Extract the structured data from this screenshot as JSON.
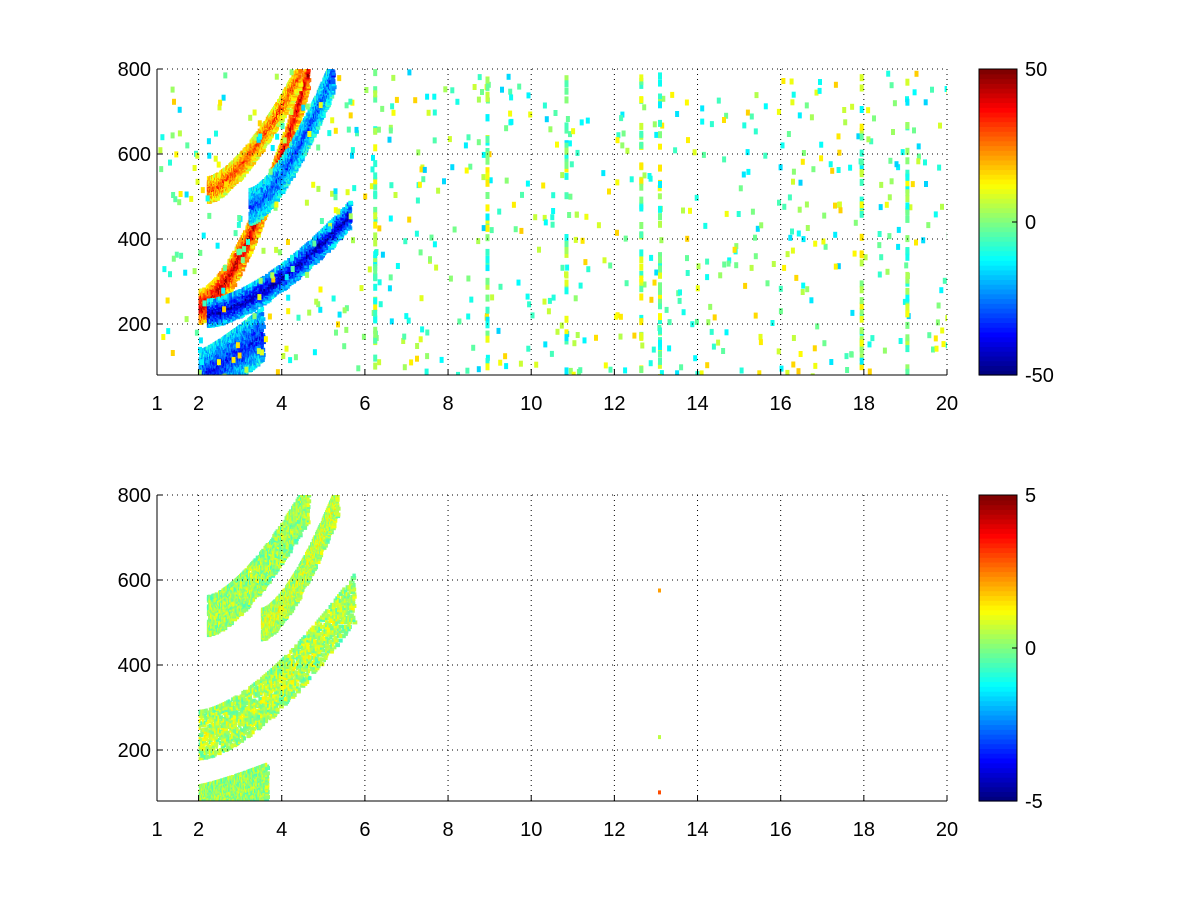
{
  "chart_data": [
    {
      "type": "heatmap",
      "title": "",
      "xlabel": "",
      "ylabel": "",
      "xlim": [
        1,
        20
      ],
      "ylim": [
        80,
        800
      ],
      "x_ticks": [
        1,
        2,
        4,
        6,
        8,
        10,
        12,
        14,
        16,
        18,
        20
      ],
      "y_ticks": [
        200,
        400,
        600,
        800
      ],
      "grid": true,
      "colormap": "jet",
      "colorbar": {
        "range": [
          -50,
          50
        ],
        "ticks": [
          -50,
          0,
          50
        ]
      },
      "features": [
        {
          "name": "",
          "x_start": 2.0,
          "x_end": 4.6,
          "y_start": 245,
          "y_end": 790,
          "curve": 0.55,
          "width": 38,
          "value": 42
        },
        {
          "name": "",
          "x_start": 2.2,
          "x_end": 5.6,
          "y_start": 230,
          "y_end": 460,
          "curve": 0.55,
          "width": 30,
          "value": -44
        },
        {
          "name": "",
          "x_start": 2.2,
          "x_end": 4.4,
          "y_start": 520,
          "y_end": 790,
          "curve": 0.5,
          "width": 28,
          "value": 30
        },
        {
          "name": "",
          "x_start": 3.2,
          "x_end": 5.2,
          "y_start": 480,
          "y_end": 790,
          "curve": 0.5,
          "width": 40,
          "value": -30
        },
        {
          "name": "",
          "x_start": 2.0,
          "x_end": 3.5,
          "y_start": 80,
          "y_end": 180,
          "curve": 0.2,
          "width": 60,
          "value": -35
        }
      ],
      "noise_columns_x": [
        6.2,
        8.9,
        10.8,
        12.6,
        13.05,
        17.9,
        19.0
      ]
    },
    {
      "type": "heatmap",
      "title": "",
      "xlabel": "",
      "ylabel": "",
      "xlim": [
        1,
        20
      ],
      "ylim": [
        80,
        800
      ],
      "x_ticks": [
        1,
        2,
        4,
        6,
        8,
        10,
        12,
        14,
        16,
        18,
        20
      ],
      "y_ticks": [
        200,
        400,
        600,
        800
      ],
      "grid": true,
      "colormap": "jet",
      "colorbar": {
        "range": [
          -5,
          5
        ],
        "ticks": [
          -5,
          0,
          5
        ]
      },
      "features": [
        {
          "name": "",
          "x_start": 2.0,
          "x_end": 5.7,
          "y_start": 240,
          "y_end": 560,
          "curve": 0.55,
          "width": 55,
          "value": 0.6
        },
        {
          "name": "",
          "x_start": 2.2,
          "x_end": 4.6,
          "y_start": 520,
          "y_end": 790,
          "curve": 0.5,
          "width": 45,
          "value": 0.4
        },
        {
          "name": "",
          "x_start": 3.5,
          "x_end": 5.3,
          "y_start": 500,
          "y_end": 790,
          "curve": 0.5,
          "width": 35,
          "value": 0.8
        },
        {
          "name": "",
          "x_start": 2.0,
          "x_end": 3.6,
          "y_start": 80,
          "y_end": 130,
          "curve": 0.2,
          "width": 40,
          "value": 0.3
        }
      ],
      "isolated_points": [
        {
          "x": 13.05,
          "y": 580,
          "value": 2.2
        },
        {
          "x": 13.05,
          "y": 235,
          "value": 0.6
        },
        {
          "x": 13.05,
          "y": 105,
          "value": 3.0
        }
      ]
    }
  ]
}
